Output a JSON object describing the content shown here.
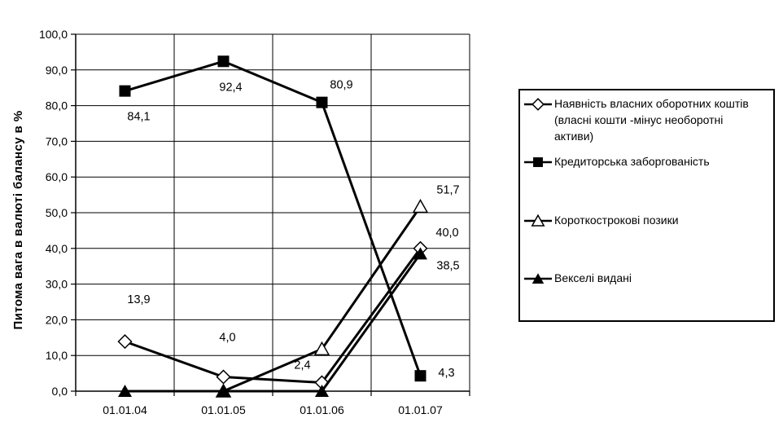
{
  "chart_data": {
    "type": "line",
    "title": "",
    "xlabel": "",
    "ylabel": "Питома вага в валюті балансу в %",
    "ylim": [
      0,
      100
    ],
    "ytick_step": 10,
    "ytick_labels": [
      "0,0",
      "10,0",
      "20,0",
      "30,0",
      "40,0",
      "50,0",
      "60,0",
      "70,0",
      "80,0",
      "90,0",
      "100,0"
    ],
    "categories": [
      "01.01.04",
      "01.01.05",
      "01.01.06",
      "01.01.07"
    ],
    "grid": true,
    "legend_position": "right",
    "colors": {
      "line": "#000000",
      "grid": "#000000",
      "background": "#ffffff",
      "text": "#000000"
    },
    "series": [
      {
        "name": "Наявність власних оборотних коштів (власні кошти -мінус необоротні активи)",
        "marker": "open-diamond",
        "values": [
          13.9,
          4.0,
          2.4,
          40.0
        ],
        "point_labels": [
          "13,9",
          "4,0",
          "2,4",
          "40,0"
        ]
      },
      {
        "name": "Кредиторська заборгованість",
        "marker": "filled-square",
        "values": [
          84.1,
          92.4,
          80.9,
          4.3
        ],
        "point_labels": [
          "84,1",
          "92,4",
          "80,9",
          "4,3"
        ]
      },
      {
        "name": "Короткострокові позики",
        "marker": "open-triangle",
        "values": [
          null,
          0.0,
          11.8,
          51.7
        ],
        "point_labels": [
          null,
          null,
          null,
          "51,7"
        ]
      },
      {
        "name": "Векселі видані",
        "marker": "filled-triangle",
        "values": [
          0.0,
          0.0,
          0.0,
          38.5
        ],
        "point_labels": [
          null,
          null,
          null,
          "38,5"
        ]
      }
    ]
  }
}
